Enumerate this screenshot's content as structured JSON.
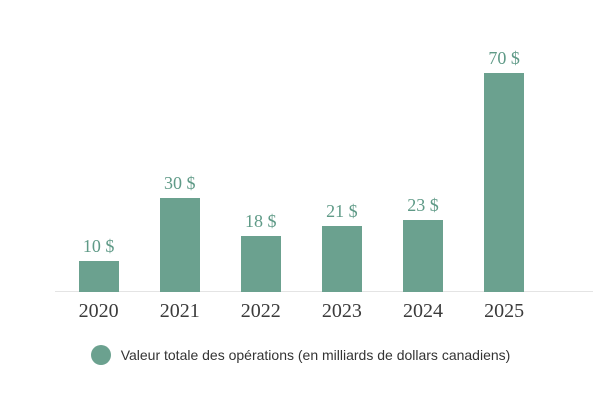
{
  "chart_data": {
    "type": "bar",
    "title": "",
    "xlabel": "",
    "ylabel": "",
    "categories": [
      "2020",
      "2021",
      "2022",
      "2023",
      "2024",
      "2025"
    ],
    "values": [
      10,
      30,
      18,
      21,
      23,
      70
    ],
    "value_labels": [
      "10 $",
      "30 $",
      "18 $",
      "21 $",
      "23 $",
      "70 $"
    ],
    "series": [
      {
        "name": "Valeur totale des opérations (en milliards de dollars canadiens)",
        "values": [
          10,
          30,
          18,
          21,
          23,
          70
        ]
      }
    ],
    "ylim": [
      0,
      75
    ],
    "grid": false,
    "y_axis_visible": false,
    "legend_position": "bottom-center",
    "colors": {
      "bar": "#6ba18f",
      "value_label": "#5f9a87",
      "axis_label": "#3b3b3b",
      "axis_line": "#e4e4e4",
      "legend_text": "#333333",
      "background": "#ffffff"
    }
  },
  "legend": {
    "marker": "circle",
    "label": "Valeur totale des opérations (en milliards de dollars canadiens)"
  }
}
